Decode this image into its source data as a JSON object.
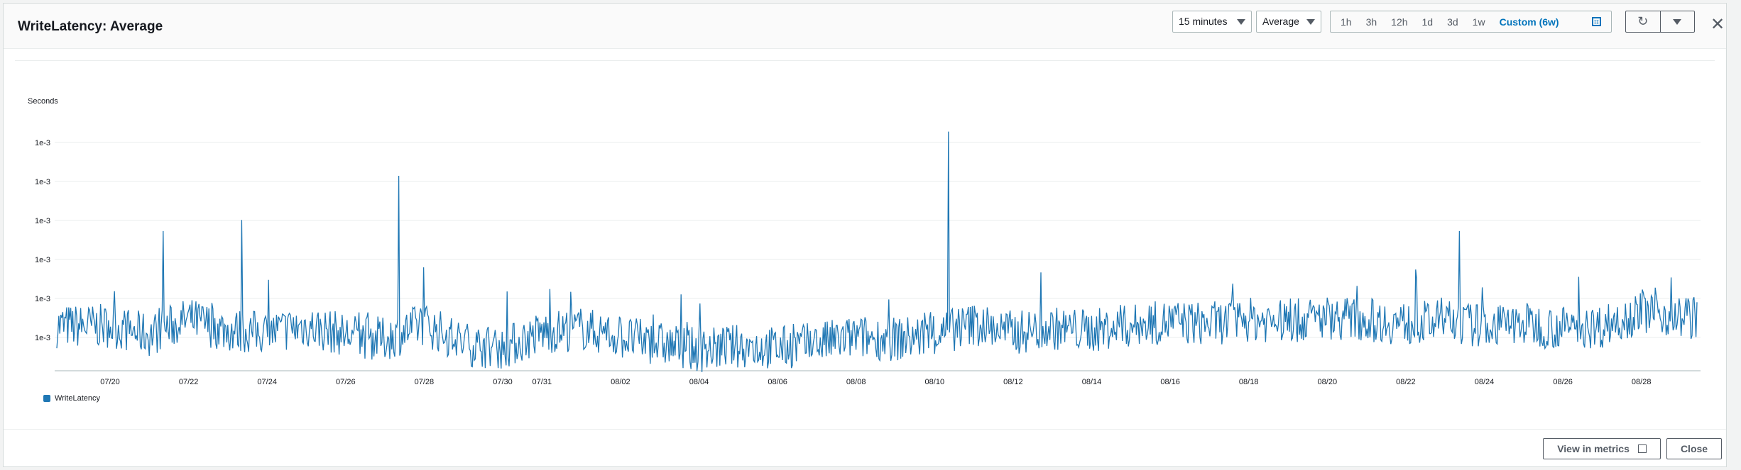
{
  "header": {
    "title": "WriteLatency: Average",
    "period_select": "15 minutes",
    "stat_select": "Average",
    "ranges": [
      "1h",
      "3h",
      "12h",
      "1d",
      "3d",
      "1w"
    ],
    "custom_range": "Custom (6w)"
  },
  "footer": {
    "view_in_metrics": "View in metrics",
    "close": "Close"
  },
  "chart_data": {
    "type": "line",
    "ylabel": "Seconds",
    "y_ticks": [
      "1e-3",
      "1e-3",
      "1e-3",
      "1e-3",
      "1e-3",
      "1e-3"
    ],
    "x_ticks": [
      "07/20",
      "07/22",
      "07/24",
      "07/26",
      "07/28",
      "07/30",
      "07/31",
      "08/02",
      "08/04",
      "08/06",
      "08/08",
      "08/10",
      "08/12",
      "08/14",
      "08/16",
      "08/18",
      "08/20",
      "08/22",
      "08/24",
      "08/26",
      "08/28"
    ],
    "series": [
      {
        "name": "WriteLatency",
        "color": "#1f77b4",
        "x": [
          "07/20",
          "07/21",
          "07/22",
          "07/23",
          "07/24",
          "07/25",
          "07/26",
          "07/27",
          "07/28",
          "07/29",
          "07/30",
          "07/31",
          "08/01",
          "08/02",
          "08/03",
          "08/04",
          "08/05",
          "08/06",
          "08/07",
          "08/08",
          "08/09",
          "08/10",
          "08/11",
          "08/12",
          "08/13",
          "08/14",
          "08/15",
          "08/16",
          "08/17",
          "08/18",
          "08/19",
          "08/20",
          "08/21",
          "08/22",
          "08/23",
          "08/24",
          "08/25",
          "08/26",
          "08/27",
          "08/28",
          "08/29"
        ],
        "values": [
          0.00112,
          0.00108,
          0.00115,
          0.0011,
          0.00109,
          0.00112,
          0.00108,
          0.00106,
          0.00113,
          0.00104,
          0.00102,
          0.00109,
          0.00111,
          0.00107,
          0.00104,
          0.00101,
          0.00103,
          0.00102,
          0.00104,
          0.00107,
          0.00106,
          0.00108,
          0.00113,
          0.00109,
          0.00111,
          0.0011,
          0.00112,
          0.00114,
          0.00113,
          0.00115,
          0.00114,
          0.00116,
          0.00115,
          0.00113,
          0.00114,
          0.00112,
          0.00113,
          0.00111,
          0.00112,
          0.00119,
          0.00116
        ]
      }
    ],
    "spikes": [
      {
        "x": "07/21",
        "y": 0.00155
      },
      {
        "x": "07/23",
        "y": 0.0016
      },
      {
        "x": "07/27",
        "y": 0.0018
      },
      {
        "x": "08/10",
        "y": 0.002
      },
      {
        "x": "08/23",
        "y": 0.00155
      }
    ],
    "grid": true,
    "legend_position": "bottom-left"
  }
}
